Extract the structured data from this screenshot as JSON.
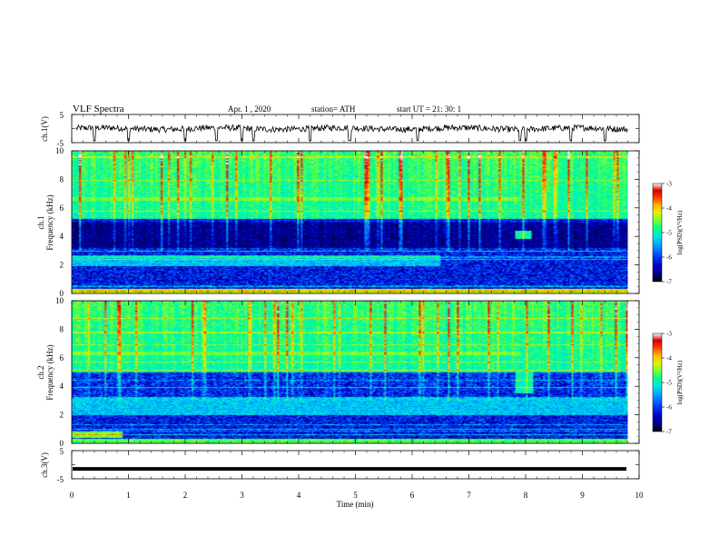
{
  "header": {
    "title": "VLF  Spectra",
    "date": "Apr. 1  , 2020",
    "station": "station= ATH",
    "start": "start  UT  =    21: 30: 1"
  },
  "colors": {
    "ink": "#000000",
    "spectrogram_scale": [
      "#000000",
      "#00006e",
      "#0000c8",
      "#0046ff",
      "#00a0ff",
      "#00e6e6",
      "#00ff8c",
      "#78ff32",
      "#e6f000",
      "#ffb400",
      "#ff3200",
      "#d20000",
      "#ffffff"
    ]
  },
  "chart_data": [
    {
      "type": "line",
      "name": "ch1-waveform",
      "ylabel": "ch.1(V)",
      "ylim": [
        -5,
        5
      ],
      "yticks": [
        "5",
        "-5"
      ],
      "xlim": [
        0,
        10
      ],
      "baseline": 0,
      "amplitude": [
        -1.2,
        1.2
      ],
      "spikes_min": [
        0.4,
        1.0,
        2.0,
        2.55,
        3.0,
        3.2,
        4.2,
        4.9,
        6.1,
        7.9,
        8.0,
        8.8,
        9.4
      ]
    },
    {
      "type": "heatmap",
      "name": "ch1-spectrogram",
      "ylabel_line1": "ch.1",
      "ylabel_line2": "Frequency  (kHz)",
      "xlim": [
        0,
        10
      ],
      "data_end_min": 9.8,
      "ylim": [
        0,
        10
      ],
      "yticks": [
        "0",
        "2",
        "4",
        "6",
        "8",
        "10"
      ],
      "colorbar": {
        "label": "log(PSD)(V²/Hz)",
        "range": [
          -7,
          -3
        ],
        "ticks": [
          "-3",
          "-4",
          "-5",
          "-6",
          "-7"
        ]
      },
      "features": [
        {
          "desc": "broadband sferics",
          "f_khz": [
            5,
            10
          ],
          "level_log_psd": -5.0
        },
        {
          "desc": "horizontal tone",
          "f_khz": 6.6,
          "level_log_psd": -4.8,
          "t_min": [
            0,
            7.9
          ]
        },
        {
          "desc": "quiet band",
          "f_khz": [
            3.2,
            5.2
          ],
          "level_log_psd": -6.8
        },
        {
          "desc": "emission band",
          "f_khz": [
            1.9,
            2.7
          ],
          "level_log_psd": -5.2,
          "t_min": [
            0,
            6.5
          ]
        },
        {
          "desc": "burst",
          "f_khz": [
            3.8,
            4.4
          ],
          "level_log_psd": -4.6,
          "t_min": [
            7.8,
            8.1
          ]
        },
        {
          "desc": "low-frequency band",
          "f_khz": [
            0,
            0.3
          ],
          "level_log_psd": -3.6
        }
      ]
    },
    {
      "type": "heatmap",
      "name": "ch2-spectrogram",
      "ylabel_line1": "ch.2",
      "ylabel_line2": "Frequency  (kHz)",
      "xlim": [
        0,
        10
      ],
      "data_end_min": 9.8,
      "ylim": [
        0,
        10
      ],
      "yticks": [
        "0",
        "2",
        "4",
        "6",
        "8",
        "10"
      ],
      "colorbar": {
        "label": "log(PSD)(V²/Hz)",
        "range": [
          -7,
          -3
        ],
        "ticks": [
          "-3",
          "-4",
          "-5",
          "-6",
          "-7"
        ]
      },
      "features": [
        {
          "desc": "broadband sferics",
          "f_khz": [
            5,
            10
          ],
          "level_log_psd": -5.0
        },
        {
          "desc": "horizontal tone",
          "f_khz": 6.3,
          "level_log_psd": -4.8,
          "t_min": [
            0,
            7.9
          ]
        },
        {
          "desc": "emission band",
          "f_khz": [
            2.0,
            3.2
          ],
          "level_log_psd": -5.2
        },
        {
          "desc": "burst",
          "f_khz": [
            3.5,
            5.0
          ],
          "level_log_psd": -4.8,
          "t_min": [
            7.8,
            8.15
          ]
        },
        {
          "desc": "band",
          "f_khz": [
            0.4,
            0.8
          ],
          "level_log_psd": -4.0,
          "t_min": [
            0,
            0.9
          ]
        },
        {
          "desc": "low-frequency band",
          "f_khz": [
            0,
            0.3
          ],
          "level_log_psd": -4.2
        }
      ]
    },
    {
      "type": "line",
      "name": "ch3-waveform",
      "ylabel": "ch.3(V)",
      "ylim": [
        -5,
        5
      ],
      "yticks": [
        "5",
        "-5"
      ],
      "xlim": [
        0,
        10
      ],
      "baseline": -1.5,
      "amplitude": [
        -1.8,
        -1.2
      ]
    }
  ],
  "xaxis": {
    "xlabel": "Time  (min)",
    "xlim": [
      0,
      10
    ],
    "ticks": [
      "0",
      "1",
      "2",
      "3",
      "4",
      "5",
      "6",
      "7",
      "8",
      "9",
      "10"
    ]
  }
}
